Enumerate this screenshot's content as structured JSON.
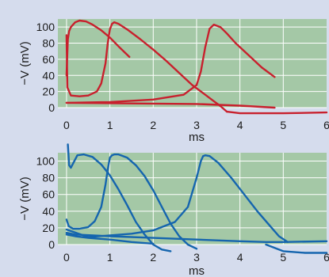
{
  "colors": {
    "background": "#d5dced",
    "plot_bg": "#a4c8a6",
    "grid": "#ffffff",
    "top_series": "#c8202d",
    "bottom_series": "#1565ae"
  },
  "chart_data": [
    {
      "type": "line",
      "xlabel": "ms",
      "ylabel": "−V (mV)",
      "xlim": [
        -0.2,
        6
      ],
      "ylim": [
        0,
        110
      ],
      "xticks": [
        "0",
        "1",
        "2",
        "3",
        "4",
        "5",
        "6"
      ],
      "yticks": [
        "0",
        "20",
        "40",
        "60",
        "80",
        "100"
      ],
      "grid": true,
      "color": "#c8202d",
      "series": [
        {
          "x": [
            0,
            0.03,
            0.06,
            0.1,
            0.2,
            0.3,
            0.45,
            0.6,
            0.8,
            1.0,
            1.2,
            1.45
          ],
          "y": [
            40,
            85,
            95,
            100,
            106,
            108,
            107,
            103,
            96,
            87,
            76,
            63
          ]
        },
        {
          "x": [
            0,
            0.02,
            0.1,
            0.3,
            0.5,
            0.7,
            0.8,
            0.9,
            0.95,
            1.0,
            1.05,
            1.1,
            1.2,
            1.4,
            1.7,
            2.0,
            2.3,
            2.6,
            2.9,
            3.2,
            3.4,
            3.55,
            3.7
          ],
          "y": [
            90,
            25,
            15,
            14,
            15,
            20,
            30,
            55,
            80,
            97,
            104,
            106,
            104,
            97,
            85,
            72,
            58,
            43,
            28,
            16,
            8,
            2,
            -5
          ]
        },
        {
          "x": [
            0,
            1,
            2,
            2.7,
            3.0,
            3.1,
            3.2,
            3.3,
            3.4,
            3.55,
            3.7,
            3.9,
            4.2,
            4.5,
            4.8
          ],
          "y": [
            6,
            7,
            10,
            16,
            28,
            45,
            75,
            98,
            103,
            100,
            92,
            80,
            65,
            50,
            38
          ]
        },
        {
          "x": [
            0,
            1,
            2,
            3,
            4,
            4.8
          ],
          "y": [
            6,
            5.5,
            5,
            4.5,
            2.5,
            0
          ]
        },
        {
          "x": [
            3.7,
            4,
            5,
            6
          ],
          "y": [
            -5,
            -7,
            -7,
            -6
          ]
        }
      ]
    },
    {
      "type": "line",
      "xlabel": "ms",
      "ylabel": "−V (mV)",
      "xlim": [
        -0.2,
        6
      ],
      "ylim": [
        0,
        110
      ],
      "xticks": [
        "0",
        "1",
        "2",
        "3",
        "4",
        "5",
        "6"
      ],
      "yticks": [
        "0",
        "20",
        "40",
        "60",
        "80",
        "100"
      ],
      "grid": true,
      "color": "#1565ae",
      "series": [
        {
          "x": [
            0.03,
            0.06,
            0.1,
            0.15,
            0.25,
            0.4,
            0.6,
            0.8,
            1.0,
            1.2,
            1.4,
            1.6,
            1.8,
            2.0,
            2.2,
            2.4
          ],
          "y": [
            120,
            95,
            92,
            97,
            107,
            108,
            105,
            96,
            83,
            66,
            47,
            27,
            12,
            0,
            -6,
            -8
          ]
        },
        {
          "x": [
            0,
            0.05,
            0.15,
            0.3,
            0.5,
            0.65,
            0.8,
            0.9,
            0.95,
            1.0,
            1.05,
            1.1,
            1.2,
            1.4,
            1.6,
            1.8,
            2.0,
            2.2,
            2.4,
            2.6,
            2.8,
            3.0
          ],
          "y": [
            30,
            22,
            19,
            19,
            21,
            28,
            45,
            72,
            90,
            104,
            107,
            108,
            108,
            104,
            95,
            82,
            65,
            45,
            25,
            10,
            0,
            -5
          ]
        },
        {
          "x": [
            0,
            0.5,
            1,
            1.5,
            2,
            2.5,
            2.8,
            3.0,
            3.1,
            3.15,
            3.2,
            3.3,
            3.5,
            3.8,
            4.1,
            4.4,
            4.7,
            4.9,
            5.1
          ],
          "y": [
            18,
            9,
            11,
            13,
            17,
            27,
            45,
            80,
            100,
            106,
            107,
            106,
            98,
            80,
            60,
            40,
            22,
            10,
            3
          ]
        },
        {
          "x": [
            0,
            0.2,
            1,
            2,
            3,
            4,
            4.6,
            5,
            6
          ],
          "y": [
            14,
            12,
            10,
            8,
            6,
            4,
            3,
            3,
            4
          ]
        },
        {
          "x": [
            0,
            0.2,
            0.5,
            1,
            1.5,
            2
          ],
          "y": [
            12,
            10,
            8,
            6,
            3,
            1
          ]
        },
        {
          "x": [
            4.6,
            5,
            5.5,
            6
          ],
          "y": [
            0,
            -8,
            -10,
            -10
          ]
        }
      ]
    }
  ]
}
